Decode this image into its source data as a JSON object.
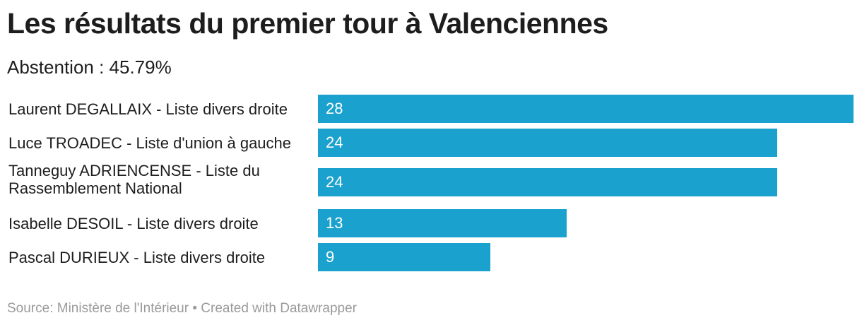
{
  "title": "Les résultats du premier tour à Valenciennes",
  "subtitle": "Abstention : 45.79%",
  "footer": "Source: Ministère de l'Intérieur • Created with Datawrapper",
  "colors": {
    "bar": "#1aa1ce",
    "bar_text": "#ffffff"
  },
  "chart_data": {
    "type": "bar",
    "orientation": "horizontal",
    "title": "Les résultats du premier tour à Valenciennes",
    "subtitle": "Abstention : 45.79%",
    "categories": [
      "Laurent DEGALLAIX - Liste divers droite",
      "Luce TROADEC - Liste d'union à gauche",
      "Tanneguy ADRIENCENSE - Liste du Rassemblement National",
      "Isabelle DESOIL - Liste divers droite",
      "Pascal DURIEUX - Liste divers droite"
    ],
    "values": [
      28,
      24,
      24,
      13,
      9
    ],
    "value_labels": [
      "28",
      "24",
      "24",
      "13",
      "9"
    ],
    "xlim": [
      0,
      28
    ],
    "grid": false,
    "legend": "none"
  }
}
